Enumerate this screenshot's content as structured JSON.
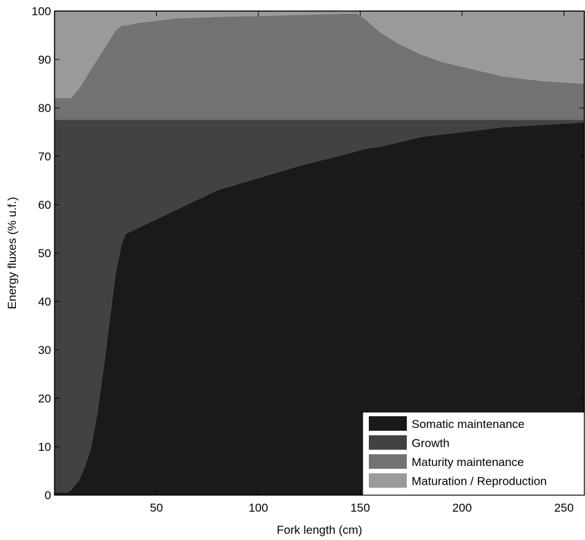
{
  "chart_data": {
    "type": "area",
    "stacked": true,
    "xlabel": "Fork length (cm)",
    "ylabel": "Energy fluxes (% u.f.)",
    "xlim": [
      0,
      260
    ],
    "ylim": [
      0,
      100
    ],
    "xticks": [
      50,
      100,
      150,
      200,
      250
    ],
    "yticks": [
      0,
      10,
      20,
      30,
      40,
      50,
      60,
      70,
      80,
      90,
      100
    ],
    "grid": false,
    "legend_position": "bottom-right",
    "x": [
      0,
      3,
      6,
      8,
      12,
      15,
      18,
      21,
      24,
      27,
      30,
      33,
      35,
      40,
      50,
      60,
      80,
      100,
      120,
      148,
      152,
      160,
      170,
      180,
      190,
      200,
      220,
      240,
      260
    ],
    "series": [
      {
        "name": "Somatic maintenance",
        "color": "#1a1a1a",
        "cumulative_top": [
          0.5,
          0.5,
          0.5,
          1,
          3,
          6,
          10,
          17,
          26,
          36,
          46,
          52,
          54,
          55,
          57,
          59,
          63,
          65.5,
          68,
          71,
          71.5,
          72,
          73,
          74,
          74.5,
          75,
          76,
          76.5,
          77
        ]
      },
      {
        "name": "Growth",
        "color": "#424242",
        "cumulative_top": [
          77.5,
          77.5,
          77.5,
          77.5,
          77.5,
          77.5,
          77.5,
          77.5,
          77.5,
          77.5,
          77.5,
          77.5,
          77.5,
          77.5,
          77.5,
          77.5,
          77.5,
          77.5,
          77.5,
          77.5,
          77.5,
          77.5,
          77.5,
          77.5,
          77.5,
          77.5,
          77.5,
          77.5,
          77.5
        ]
      },
      {
        "name": "Maturity maintenance",
        "color": "#727272",
        "cumulative_top": [
          82,
          82,
          82,
          82,
          84,
          86,
          88,
          90,
          92,
          94,
          96,
          97,
          97,
          97.5,
          98,
          98.5,
          98.8,
          99,
          99.2,
          99.5,
          98.5,
          95.5,
          93,
          91,
          89.5,
          88.5,
          86.5,
          85.5,
          85
        ]
      },
      {
        "name": "Maturation / Reproduction",
        "color": "#9a9a9a",
        "cumulative_top": [
          100,
          100,
          100,
          100,
          100,
          100,
          100,
          100,
          100,
          100,
          100,
          100,
          100,
          100,
          100,
          100,
          100,
          100,
          100,
          100,
          100,
          100,
          100,
          100,
          100,
          100,
          100,
          100,
          100
        ]
      }
    ]
  }
}
